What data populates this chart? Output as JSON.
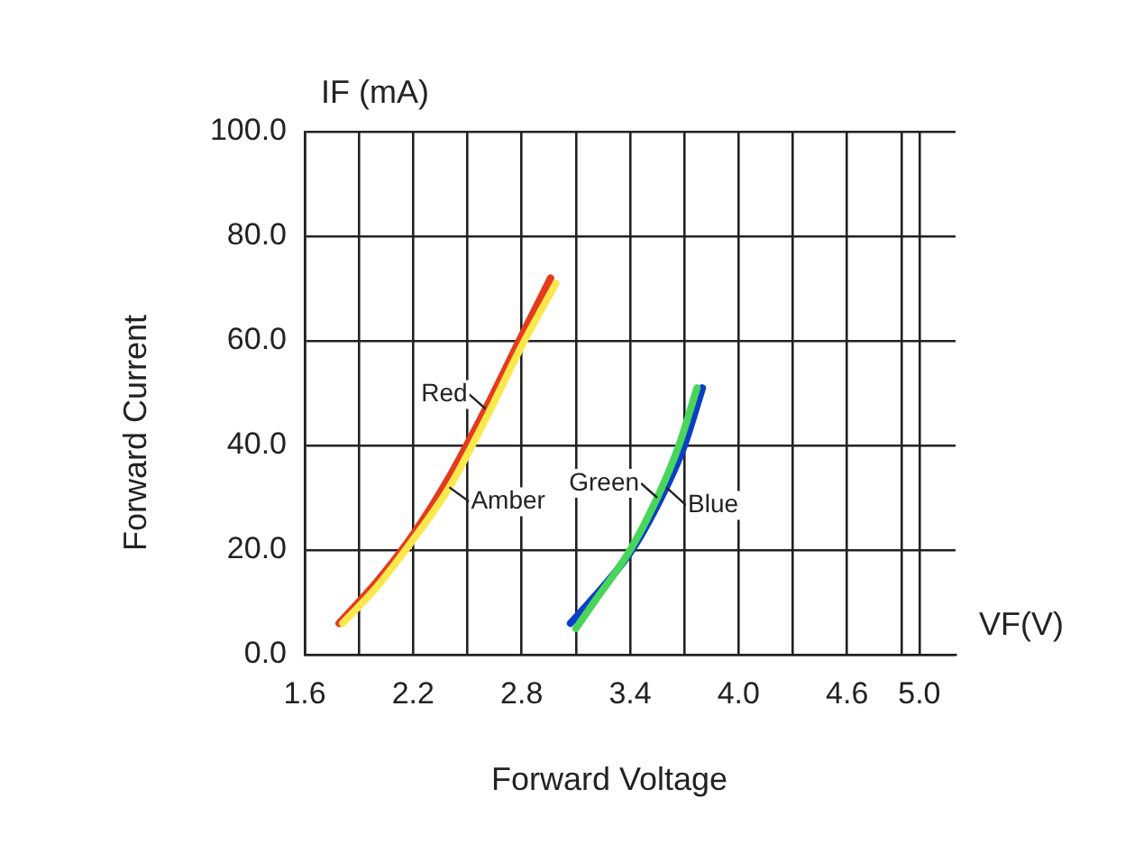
{
  "chart_data": {
    "type": "line",
    "xlabel": "Forward Voltage",
    "ylabel": "Forward Current",
    "annotations": [
      "IF (mA)",
      "VF(V)"
    ],
    "xlim": [
      1.6,
      5.2
    ],
    "xticks": [
      1.6,
      {
        "value": 1.9,
        "label": null
      },
      2.2,
      {
        "value": 2.5,
        "label": null
      },
      2.8,
      {
        "value": 3.1,
        "label": null
      },
      3.4,
      {
        "value": 3.7,
        "label": null
      },
      {
        "value": 4,
        "label": "4.0"
      },
      {
        "value": 4.3,
        "label": null
      },
      4.6,
      {
        "value": 4.9,
        "label": null
      },
      {
        "value": 5.0,
        "label": "5.0"
      }
    ],
    "ylim": [
      0,
      100
    ],
    "yticks": [
      {
        "value": 0,
        "label": "0.0"
      },
      {
        "value": 20,
        "label": "20.0"
      },
      {
        "value": 40,
        "label": "40.0"
      },
      {
        "value": 60,
        "label": "60.0"
      },
      {
        "value": 80,
        "label": "80.0"
      },
      {
        "value": 100,
        "label": "100.0"
      }
    ],
    "grid": true,
    "series": [
      {
        "name": "Amber",
        "color": "#fde84c",
        "x": [
          1.81,
          2.0,
          2.2,
          2.4,
          2.6,
          2.8,
          2.99
        ],
        "values": [
          6,
          13,
          22,
          32,
          45,
          59,
          71
        ]
      },
      {
        "name": "Red",
        "color": "#e53a1e",
        "x": [
          1.79,
          2.0,
          2.2,
          2.4,
          2.6,
          2.8,
          2.96
        ],
        "values": [
          6,
          14,
          23,
          34,
          47,
          61,
          72
        ]
      },
      {
        "name": "Green",
        "color": "#48d65a",
        "x": [
          3.1,
          3.2,
          3.4,
          3.55,
          3.67,
          3.77
        ],
        "values": [
          5,
          10,
          20,
          30,
          40,
          51
        ]
      },
      {
        "name": "Blue",
        "color": "#0b3ec8",
        "x": [
          3.07,
          3.2,
          3.41,
          3.6,
          3.7,
          3.8
        ],
        "values": [
          6,
          11,
          20,
          32,
          40,
          51
        ]
      }
    ]
  }
}
